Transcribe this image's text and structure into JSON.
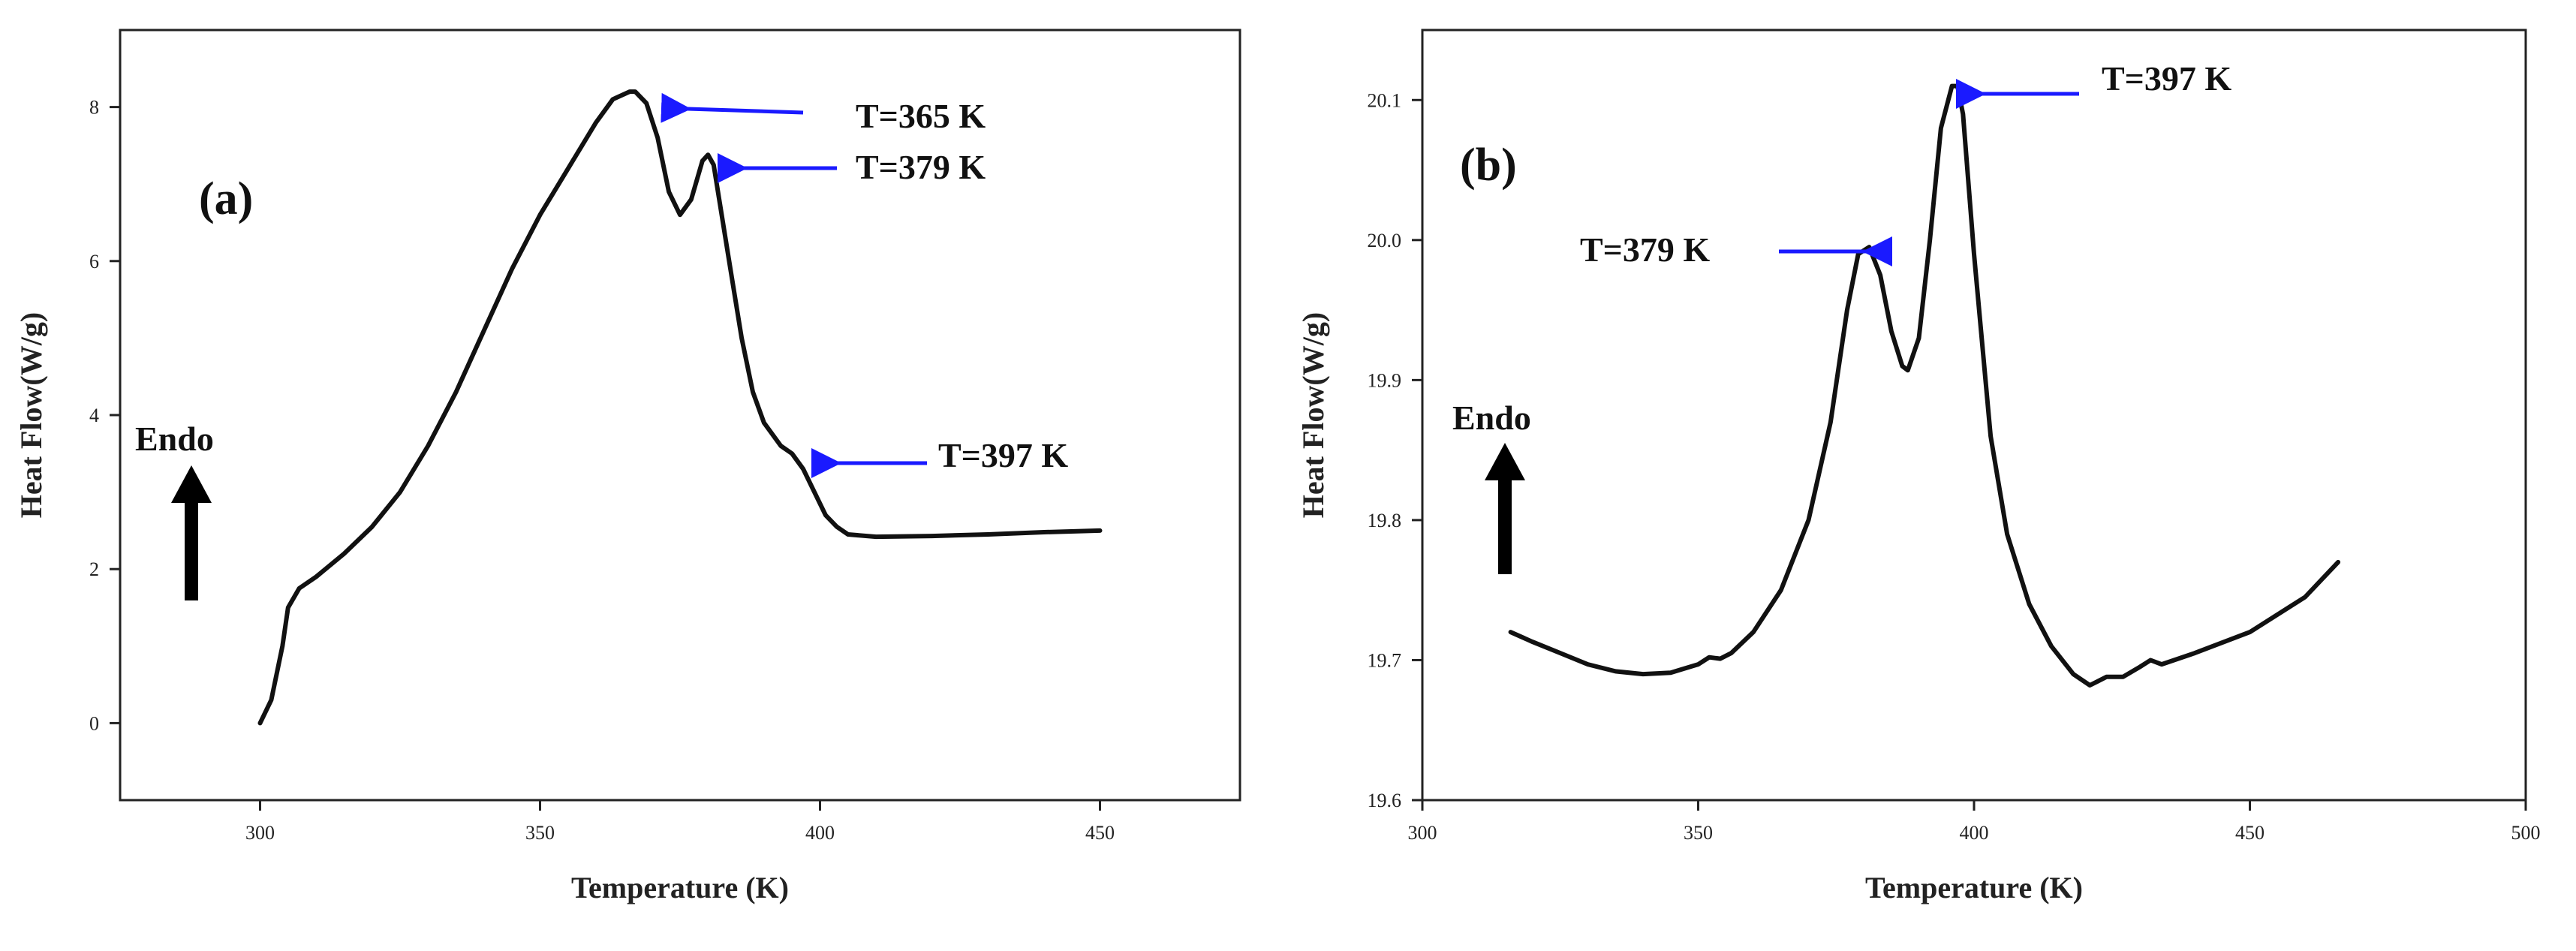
{
  "colors": {
    "curve": "#111111",
    "arrow": "#1a1aff",
    "endo_arrow": "#000000",
    "frame": "#222222"
  },
  "chart_data": [
    {
      "type": "line",
      "panel_label": "(a)",
      "xlabel": "Temperature (K)",
      "ylabel": "Heat Flow(W/g)",
      "xlim": [
        275,
        475
      ],
      "ylim": [
        -1,
        9
      ],
      "xticks": [
        300,
        350,
        400,
        450
      ],
      "yticks": [
        0,
        2,
        4,
        6,
        8
      ],
      "grid": false,
      "endo_label": "Endo",
      "series": [
        {
          "x": [
            300,
            302,
            304,
            305,
            307,
            310,
            315,
            320,
            325,
            330,
            335,
            340,
            345,
            350,
            355,
            360,
            363,
            366,
            367,
            369,
            371,
            373,
            375,
            377,
            379,
            380,
            381,
            382,
            384,
            386,
            388,
            390,
            393,
            395,
            397,
            399,
            401,
            403,
            405,
            410,
            420,
            430,
            440,
            450
          ],
          "y": [
            0.0,
            0.3,
            1.0,
            1.5,
            1.75,
            1.9,
            2.2,
            2.55,
            3.0,
            3.6,
            4.3,
            5.1,
            5.9,
            6.6,
            7.2,
            7.8,
            8.1,
            8.2,
            8.2,
            8.05,
            7.6,
            6.9,
            6.6,
            6.8,
            7.3,
            7.38,
            7.25,
            6.8,
            5.9,
            5.0,
            4.3,
            3.9,
            3.6,
            3.5,
            3.3,
            3.0,
            2.7,
            2.55,
            2.45,
            2.42,
            2.43,
            2.45,
            2.48,
            2.5
          ]
        }
      ],
      "annotations": [
        {
          "text": "T=365 K",
          "x": 367,
          "y": 8.2
        },
        {
          "text": "T=379 K",
          "x": 381,
          "y": 7.4
        },
        {
          "text": "T=397 K",
          "x": 398,
          "y": 3.45
        }
      ]
    },
    {
      "type": "line",
      "panel_label": "(b)",
      "xlabel": "Temperature (K)",
      "ylabel": "Heat Flow(W/g)",
      "xlim": [
        300,
        500
      ],
      "ylim": [
        19.6,
        20.15
      ],
      "xticks": [
        300,
        350,
        400,
        450,
        500
      ],
      "yticks": [
        19.6,
        19.7,
        19.8,
        19.9,
        20.0,
        20.1
      ],
      "grid": false,
      "endo_label": "Endo",
      "series": [
        {
          "x": [
            316,
            320,
            325,
            330,
            335,
            340,
            345,
            350,
            352,
            354,
            356,
            360,
            365,
            370,
            374,
            377,
            379,
            381,
            383,
            385,
            387,
            388,
            390,
            392,
            394,
            396,
            397,
            398,
            400,
            403,
            406,
            410,
            414,
            418,
            421,
            424,
            427,
            430,
            432,
            434,
            440,
            450,
            460,
            466
          ],
          "y": [
            19.72,
            19.713,
            19.705,
            19.697,
            19.692,
            19.69,
            19.691,
            19.697,
            19.702,
            19.701,
            19.705,
            19.72,
            19.75,
            19.8,
            19.87,
            19.95,
            19.99,
            19.995,
            19.975,
            19.935,
            19.91,
            19.907,
            19.93,
            20.0,
            20.08,
            20.11,
            20.11,
            20.09,
            19.99,
            19.86,
            19.79,
            19.74,
            19.71,
            19.69,
            19.682,
            19.688,
            19.688,
            19.695,
            19.7,
            19.697,
            19.705,
            19.72,
            19.745,
            19.77
          ]
        }
      ],
      "annotations": [
        {
          "text": "T=379 K",
          "x": 380,
          "y": 19.995
        },
        {
          "text": "T=397 K",
          "x": 397,
          "y": 20.11
        }
      ]
    }
  ]
}
